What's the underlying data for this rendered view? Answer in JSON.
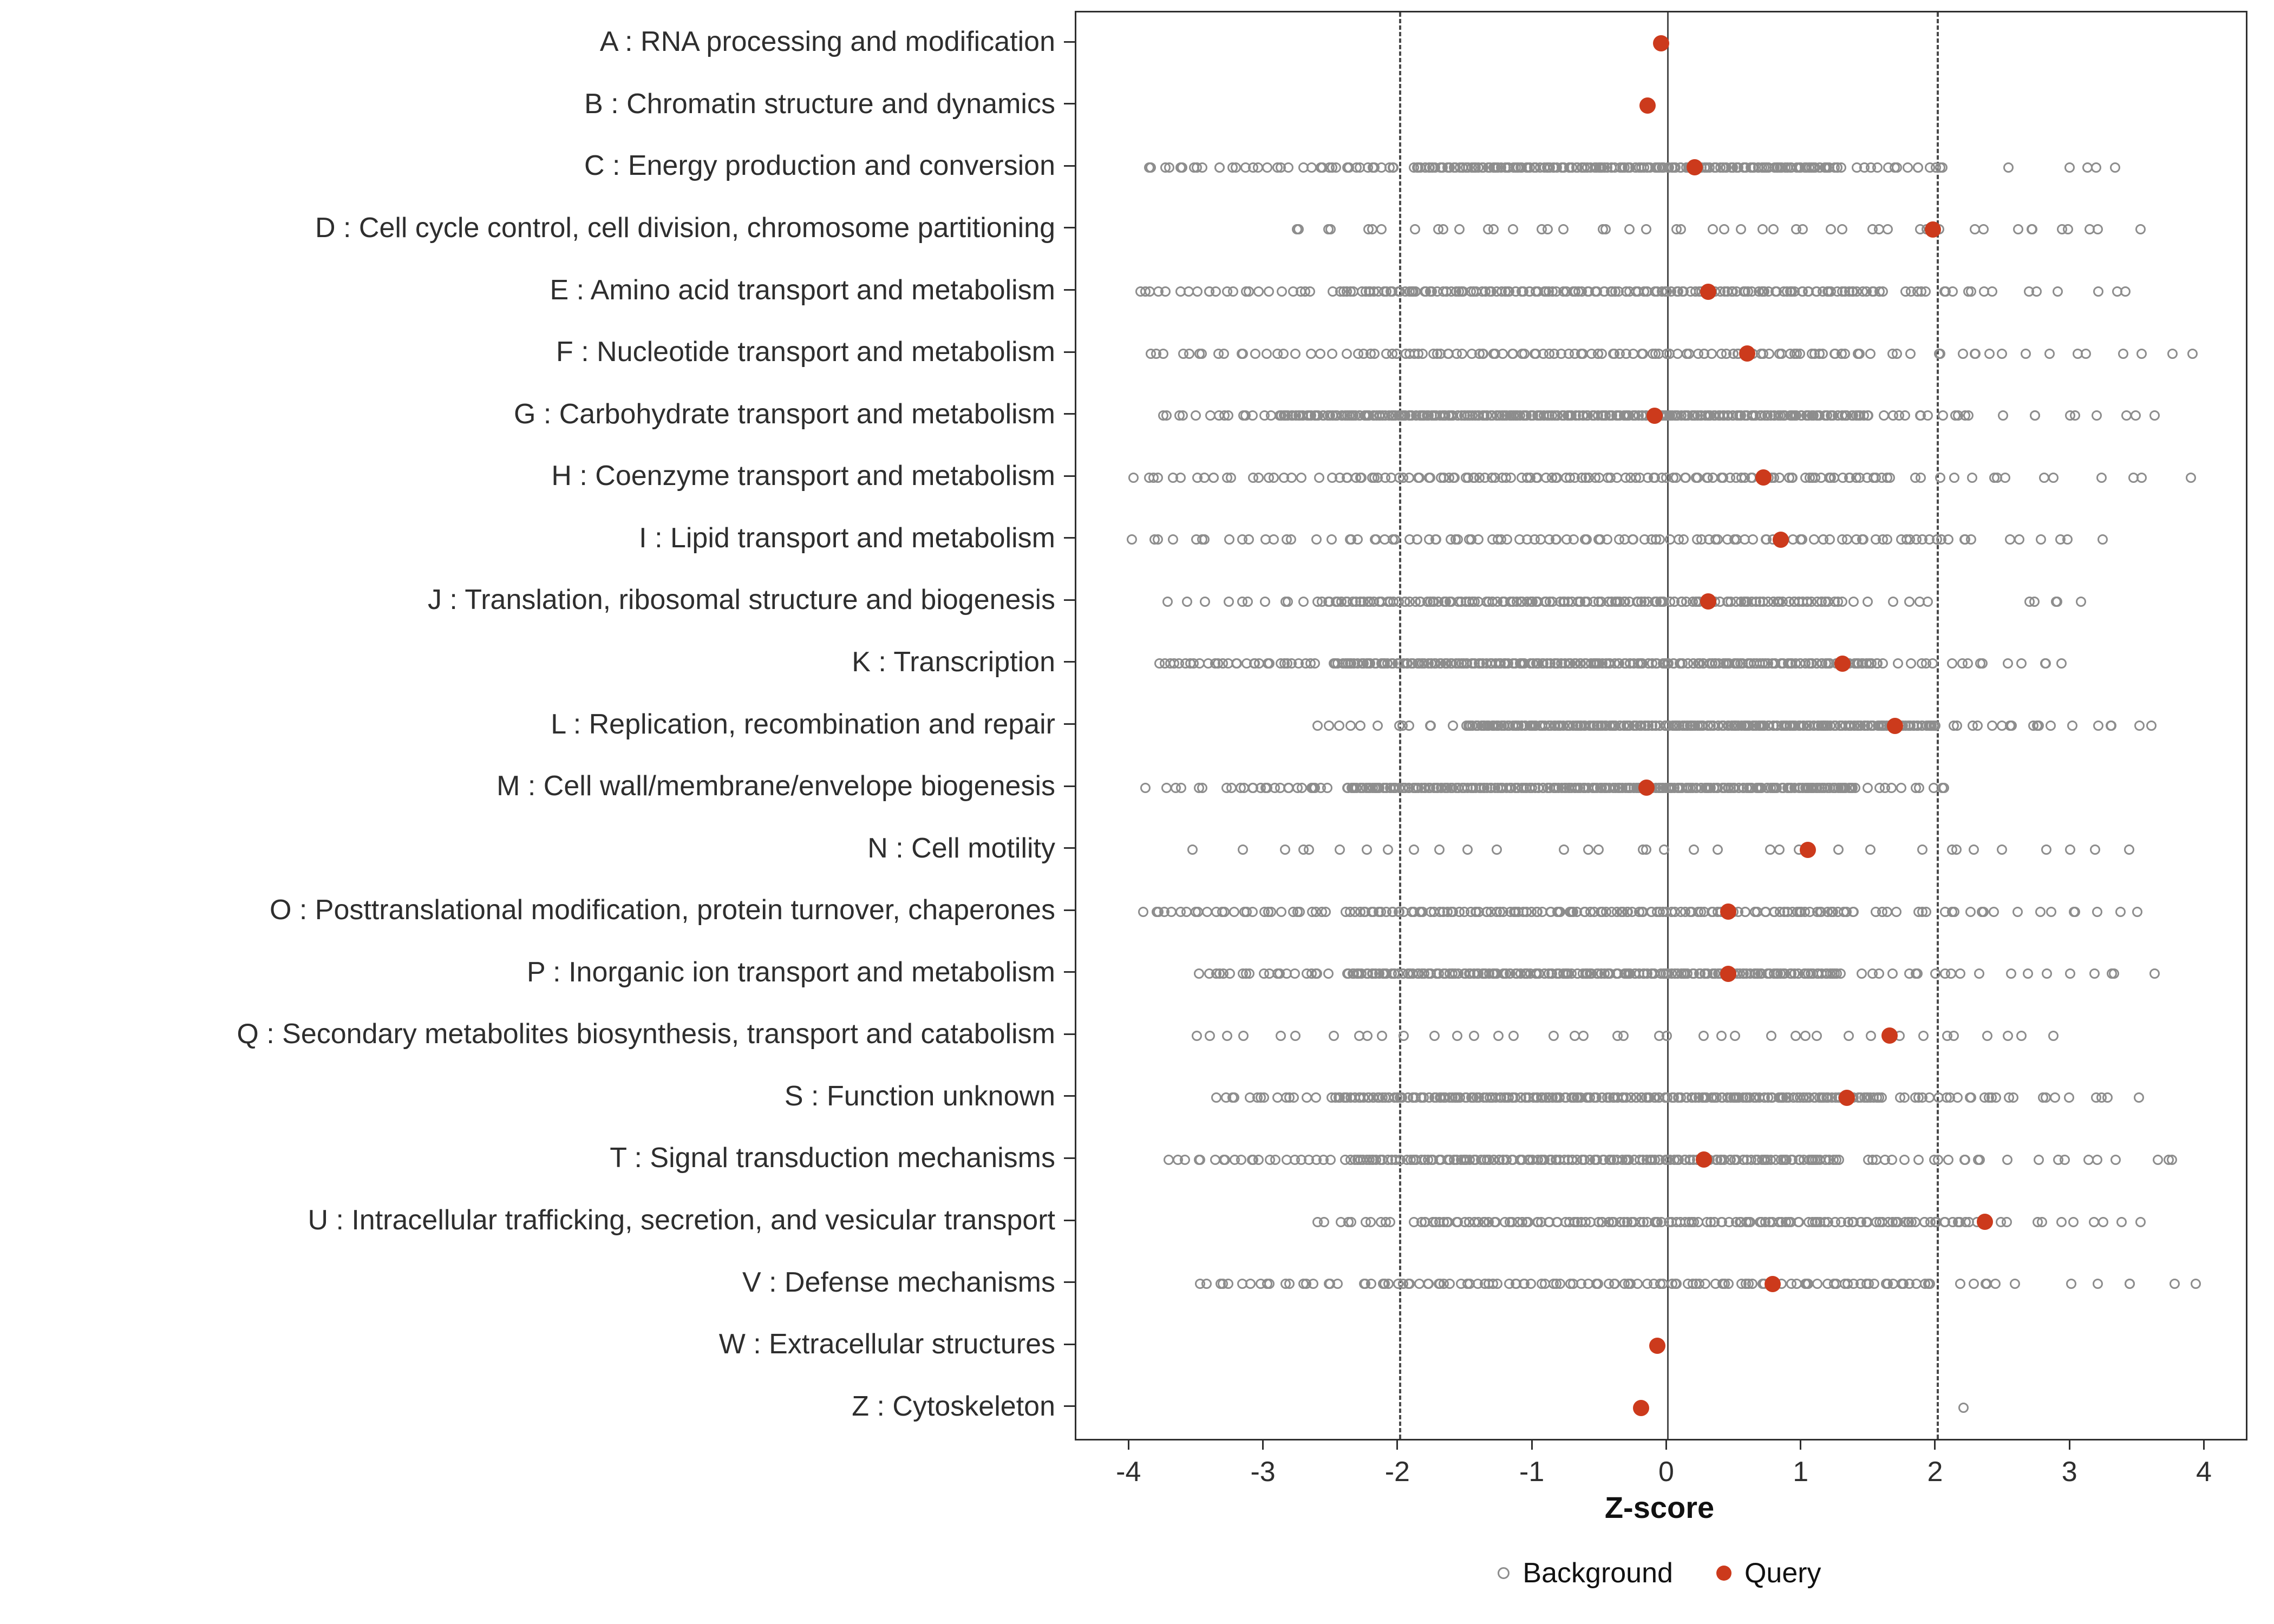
{
  "chart_data": {
    "type": "scatter",
    "title": "",
    "xlabel": "Z-score",
    "ylabel": "",
    "xlim": [
      -4.4,
      4.3
    ],
    "x_ticks": [
      -4,
      -3,
      -2,
      -1,
      0,
      1,
      2,
      3,
      4
    ],
    "grid": false,
    "reference_lines": {
      "solid": [
        0
      ],
      "dashed": [
        -2,
        2
      ]
    },
    "legend": {
      "position": "bottom",
      "background_label": "Background",
      "query_label": "Query"
    },
    "colors": {
      "query": "#cc3a1c",
      "background_stroke": "#8d8d8d",
      "axis_text": "#2e2e2e",
      "panel_border": "#2f2f2f",
      "reference_line": "#4a4a4a"
    },
    "categories": [
      {
        "label": "A : RNA processing and modification",
        "query": -0.05,
        "background_segments": []
      },
      {
        "label": "B : Chromatin structure and dynamics",
        "query": -0.15,
        "background_segments": []
      },
      {
        "label": "C : Energy production and conversion",
        "query": 0.2,
        "background_segments": [
          [
            -3.9,
            -2.8,
            20
          ],
          [
            -2.7,
            -2.0,
            18
          ],
          [
            -1.9,
            1.3,
            170
          ],
          [
            1.4,
            2.1,
            14
          ],
          [
            2.5,
            3.6,
            5
          ]
        ]
      },
      {
        "label": "D : Cell cycle control, cell division, chromosome partitioning",
        "query": 1.97,
        "background_segments": [
          [
            -2.9,
            3.5,
            48
          ]
        ]
      },
      {
        "label": "E : Amino acid transport and metabolism",
        "query": 0.3,
        "background_segments": [
          [
            -4.0,
            -2.6,
            22
          ],
          [
            -2.5,
            1.6,
            150
          ],
          [
            1.7,
            2.4,
            12
          ],
          [
            2.5,
            3.5,
            6
          ]
        ]
      },
      {
        "label": "F : Nucleotide transport and metabolism",
        "query": 0.59,
        "background_segments": [
          [
            -3.9,
            -2.4,
            20
          ],
          [
            -2.3,
            1.5,
            90
          ],
          [
            1.6,
            2.6,
            10
          ],
          [
            2.7,
            3.9,
            8
          ]
        ]
      },
      {
        "label": "G : Carbohydrate transport and metabolism",
        "query": -0.1,
        "background_segments": [
          [
            -3.8,
            -2.9,
            14
          ],
          [
            -2.9,
            1.5,
            260
          ],
          [
            1.6,
            2.3,
            12
          ],
          [
            2.4,
            3.7,
            9
          ]
        ]
      },
      {
        "label": "H : Coenzyme transport and metabolism",
        "query": 0.71,
        "background_segments": [
          [
            -4.0,
            -2.6,
            20
          ],
          [
            -2.5,
            1.7,
            110
          ],
          [
            1.8,
            2.6,
            8
          ],
          [
            2.7,
            3.9,
            6
          ]
        ]
      },
      {
        "label": "I : Lipid transport and metabolism",
        "query": 0.84,
        "background_segments": [
          [
            -4.0,
            -2.5,
            16
          ],
          [
            -2.4,
            2.3,
            90
          ],
          [
            2.4,
            3.2,
            6
          ]
        ]
      },
      {
        "label": "J : Translation, ribosomal structure and biogenesis",
        "query": 0.3,
        "background_segments": [
          [
            -3.7,
            -2.6,
            10
          ],
          [
            -2.6,
            1.3,
            150
          ],
          [
            1.4,
            2.0,
            6
          ],
          [
            2.6,
            3.1,
            5
          ]
        ]
      },
      {
        "label": "K : Transcription",
        "query": 1.3,
        "background_segments": [
          [
            -3.8,
            -2.6,
            30
          ],
          [
            -2.5,
            1.6,
            200
          ],
          [
            1.7,
            2.4,
            10
          ],
          [
            2.5,
            3.0,
            5
          ]
        ]
      },
      {
        "label": "L : Replication, recombination and repair",
        "query": 1.69,
        "background_segments": [
          [
            -2.6,
            -1.6,
            12
          ],
          [
            -1.5,
            2.0,
            230
          ],
          [
            2.1,
            2.9,
            12
          ],
          [
            3.0,
            3.6,
            6
          ]
        ]
      },
      {
        "label": "M : Cell wall/membrane/envelope biogenesis",
        "query": -0.16,
        "background_segments": [
          [
            -3.9,
            -3.4,
            6
          ],
          [
            -3.3,
            -2.5,
            20
          ],
          [
            -2.4,
            1.4,
            240
          ],
          [
            1.5,
            2.1,
            10
          ]
        ]
      },
      {
        "label": "N : Cell motility",
        "query": 1.04,
        "background_segments": [
          [
            -3.5,
            3.5,
            34
          ]
        ]
      },
      {
        "label": "O : Posttranslational modification, protein turnover, chaperones",
        "query": 0.45,
        "background_segments": [
          [
            -3.9,
            -2.5,
            28
          ],
          [
            -2.4,
            1.4,
            130
          ],
          [
            1.5,
            2.5,
            14
          ],
          [
            2.6,
            3.5,
            8
          ]
        ]
      },
      {
        "label": "P : Inorganic ion transport and metabolism",
        "query": 0.45,
        "background_segments": [
          [
            -3.5,
            -2.5,
            20
          ],
          [
            -2.4,
            1.3,
            180
          ],
          [
            1.4,
            2.3,
            12
          ],
          [
            2.4,
            3.6,
            8
          ]
        ]
      },
      {
        "label": "Q : Secondary metabolites biosynthesis, transport and catabolism",
        "query": 1.65,
        "background_segments": [
          [
            -3.6,
            2.9,
            40
          ]
        ]
      },
      {
        "label": "S : Function unknown",
        "query": 1.33,
        "background_segments": [
          [
            -3.4,
            -2.6,
            14
          ],
          [
            -2.5,
            1.6,
            210
          ],
          [
            1.7,
            2.6,
            18
          ],
          [
            2.7,
            3.5,
            8
          ]
        ]
      },
      {
        "label": "T : Signal transduction mechanisms",
        "query": 0.27,
        "background_segments": [
          [
            -3.7,
            -2.5,
            22
          ],
          [
            -2.4,
            1.3,
            160
          ],
          [
            1.4,
            2.4,
            14
          ],
          [
            2.5,
            3.9,
            10
          ]
        ]
      },
      {
        "label": "U : Intracellular trafficking, secretion, and vesicular transport",
        "query": 2.36,
        "background_segments": [
          [
            -2.6,
            -2.0,
            10
          ],
          [
            -1.9,
            2.3,
            140
          ],
          [
            2.4,
            3.6,
            10
          ]
        ]
      },
      {
        "label": "V : Defense mechanisms",
        "query": 0.78,
        "background_segments": [
          [
            -3.5,
            -2.4,
            18
          ],
          [
            -2.3,
            2.0,
            100
          ],
          [
            2.1,
            2.6,
            6
          ],
          [
            3.0,
            3.9,
            6
          ]
        ]
      },
      {
        "label": "W : Extracellular structures",
        "query": -0.08,
        "background_segments": []
      },
      {
        "label": "Z : Cytoskeleton",
        "query": -0.2,
        "background_segments": [
          [
            2.2,
            2.2,
            1
          ]
        ]
      }
    ]
  }
}
